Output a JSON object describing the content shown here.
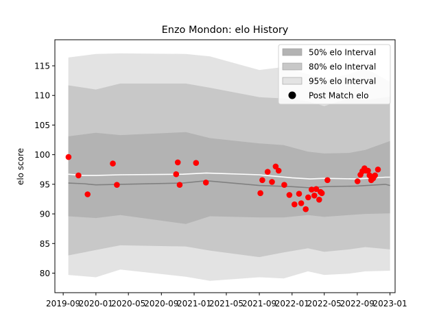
{
  "chart_data": {
    "type": "line",
    "title": "Enzo Mondon: elo History",
    "xlabel": "",
    "ylabel": "elo score",
    "xlim": [
      "2019-08-01",
      "2023-01-20"
    ],
    "ylim": [
      76.7,
      119.4
    ],
    "yticks": [
      80,
      85,
      90,
      95,
      100,
      105,
      110,
      115
    ],
    "xticks": [
      "2019-09",
      "2020-01",
      "2020-05",
      "2020-09",
      "2021-01",
      "2021-05",
      "2021-09",
      "2022-01",
      "2022-05",
      "2022-09",
      "2023-01"
    ],
    "grid": false,
    "legend_position": "top-right",
    "legend": [
      {
        "label": "50% elo Interval",
        "color": "#b3b3b3"
      },
      {
        "label": "80% elo Interval",
        "color": "#c8c8c8"
      },
      {
        "label": "95% elo Interval",
        "color": "#e3e3e3"
      },
      {
        "label": "Post Match elo",
        "color": "#000000"
      }
    ],
    "colors": {
      "band50": "#b3b3b3",
      "band80": "#c8c8c8",
      "band95": "#e3e3e3",
      "mean": "#808080",
      "median": "#ffffff",
      "points": "#ff0000"
    },
    "bands": {
      "x": [
        "2019-09-20",
        "2020-01-01",
        "2020-04-01",
        "2020-12-01",
        "2021-03-01",
        "2021-09-01",
        "2021-12-01",
        "2022-03-01",
        "2022-05-01",
        "2022-08-01",
        "2022-10-01",
        "2023-01-01"
      ],
      "p95_low": [
        79.7,
        79.3,
        80.6,
        79.4,
        78.7,
        79.3,
        79.1,
        80.3,
        79.7,
        79.9,
        80.3,
        80.4
      ],
      "p80_low": [
        83.0,
        83.9,
        84.7,
        84.5,
        83.8,
        82.7,
        83.5,
        84.2,
        83.6,
        84.0,
        84.4,
        84.0
      ],
      "p50_low": [
        89.6,
        89.3,
        89.8,
        88.3,
        89.6,
        89.4,
        89.4,
        89.8,
        89.5,
        89.8,
        90.0,
        90.1
      ],
      "p50_high": [
        103.1,
        103.7,
        103.3,
        103.8,
        102.8,
        101.9,
        101.6,
        100.5,
        100.2,
        100.3,
        100.8,
        102.3
      ],
      "p80_high": [
        111.7,
        111.0,
        112.0,
        112.0,
        111.3,
        109.7,
        109.5,
        109.0,
        108.2,
        109.5,
        109.2,
        109.8
      ],
      "p95_high": [
        116.4,
        117.0,
        117.1,
        117.0,
        116.6,
        114.3,
        114.8,
        113.6,
        112.6,
        113.6,
        114.6,
        112.3
      ]
    },
    "series": [
      {
        "x": [
          "2019-09-20",
          "2019-11-15",
          "2020-01-01",
          "2020-04-01",
          "2020-11-20",
          "2021-02-15",
          "2021-09-01",
          "2022-01-01",
          "2022-03-10",
          "2022-05-01",
          "2022-09-01",
          "2022-12-15",
          "2023-01-01"
        ],
        "values": [
          95.2,
          95.1,
          94.9,
          95.0,
          95.2,
          95.6,
          94.8,
          94.6,
          94.4,
          94.6,
          94.7,
          95.0,
          94.8
        ]
      },
      {
        "x": [
          "2019-09-20",
          "2019-11-15",
          "2020-01-01",
          "2020-04-01",
          "2020-11-20",
          "2021-02-15",
          "2021-09-01",
          "2022-01-01",
          "2022-03-10",
          "2022-05-01",
          "2022-09-01",
          "2022-12-15",
          "2023-01-01"
        ],
        "values": [
          96.7,
          96.5,
          96.5,
          96.6,
          96.7,
          96.9,
          96.6,
          96.1,
          95.9,
          96.0,
          95.9,
          96.2,
          96.2
        ]
      },
      {
        "type": "scatter",
        "name": "Post Match elo",
        "x": [
          "2019-09-21",
          "2019-10-28",
          "2019-12-01",
          "2020-03-04",
          "2020-03-19",
          "2020-10-26",
          "2020-11-01",
          "2020-11-08",
          "2021-01-08",
          "2021-02-14",
          "2021-09-05",
          "2021-09-12",
          "2021-10-02",
          "2021-10-18",
          "2021-11-01",
          "2021-11-12",
          "2021-12-03",
          "2021-12-22",
          "2022-01-10",
          "2022-01-27",
          "2022-02-04",
          "2022-02-21",
          "2022-03-02",
          "2022-03-15",
          "2022-03-25",
          "2022-04-01",
          "2022-04-12",
          "2022-04-17",
          "2022-04-22",
          "2022-05-13",
          "2022-09-02",
          "2022-09-13",
          "2022-09-20",
          "2022-09-28",
          "2022-10-04",
          "2022-10-11",
          "2022-10-17",
          "2022-10-23",
          "2022-10-30",
          "2022-11-06",
          "2022-11-17"
        ],
        "values": [
          99.6,
          96.5,
          93.3,
          98.5,
          94.9,
          96.7,
          98.7,
          94.9,
          98.6,
          95.3,
          93.5,
          95.7,
          97.1,
          95.4,
          98.0,
          97.3,
          94.9,
          93.2,
          91.6,
          93.4,
          91.8,
          90.8,
          92.8,
          94.1,
          93.1,
          94.2,
          92.4,
          93.7,
          93.5,
          95.7,
          95.5,
          96.6,
          97.2,
          97.7,
          97.3,
          97.3,
          96.5,
          95.7,
          96.0,
          96.5,
          97.5
        ]
      }
    ]
  }
}
